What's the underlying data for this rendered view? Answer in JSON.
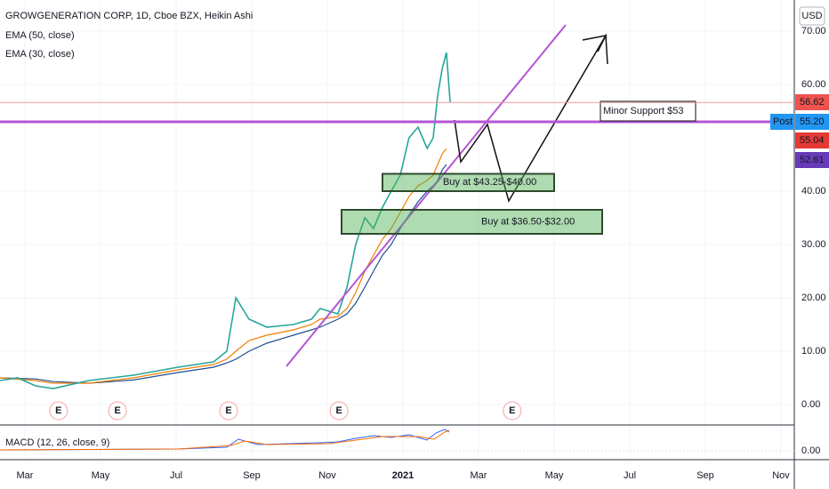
{
  "chart_data": {
    "type": "line",
    "title": "GROWGENERATION CORP, 1D, Cboe BZX, Heikin Ashi",
    "currency": "USD",
    "price": {
      "color": "#26a69a",
      "x": [
        -0.66,
        -0.19,
        0.28,
        0.75,
        1.69,
        2.87,
        4.05,
        4.99,
        5.34,
        5.58,
        5.93,
        6.4,
        7.1,
        7.58,
        7.81,
        8.28,
        8.52,
        8.75,
        8.99,
        9.22,
        9.46,
        9.69,
        9.93,
        10.16,
        10.4,
        10.64,
        10.8,
        10.92,
        11.04,
        11.15,
        11.25
      ],
      "values": [
        4.5,
        5,
        3.5,
        3,
        4.5,
        5.5,
        7,
        8,
        10,
        20,
        16,
        14.5,
        15,
        16,
        18,
        17,
        22,
        30,
        35,
        33,
        37,
        40,
        43,
        50,
        52,
        48,
        50,
        58,
        63,
        66,
        56.62
      ]
    },
    "series": [
      {
        "name": "EMA (50, close)",
        "color": "#1e4f8f",
        "x": [
          -0.66,
          0.28,
          0.75,
          1.69,
          2.87,
          4.05,
          4.99,
          5.34,
          5.58,
          5.93,
          6.4,
          7.1,
          7.58,
          7.81,
          8.28,
          8.52,
          8.75,
          8.99,
          9.22,
          9.46,
          9.69,
          9.93,
          10.16,
          10.4,
          10.64,
          10.8,
          10.92,
          11.04,
          11.15
        ],
        "values": [
          5,
          4.8,
          4.3,
          4,
          4.6,
          6,
          7,
          7.8,
          8.5,
          10,
          11.5,
          13,
          14,
          14.5,
          16,
          17,
          19,
          22,
          25,
          28,
          30,
          33,
          35.5,
          38,
          40,
          41,
          42,
          44,
          45
        ]
      },
      {
        "name": "EMA (30, close)",
        "color": "#f57c00",
        "x": [
          -0.66,
          0.28,
          0.75,
          1.69,
          2.87,
          4.05,
          4.99,
          5.34,
          5.58,
          5.93,
          6.4,
          7.1,
          7.58,
          7.81,
          8.28,
          8.52,
          8.75,
          8.99,
          9.22,
          9.46,
          9.69,
          9.93,
          10.16,
          10.4,
          10.64,
          10.8,
          10.92,
          11.04,
          11.15
        ],
        "values": [
          5,
          4.5,
          4,
          4,
          5,
          6.5,
          7.5,
          8.5,
          10,
          12,
          13,
          14,
          15,
          16,
          16.5,
          18,
          21,
          25,
          28,
          31,
          33,
          36,
          39,
          41,
          42,
          43,
          45,
          47,
          48
        ]
      }
    ],
    "xlim": [
      -0.659,
      20.353
    ],
    "xticks": [
      {
        "value": 0,
        "label": "Mar"
      },
      {
        "value": 2,
        "label": "May"
      },
      {
        "value": 4,
        "label": "Jul"
      },
      {
        "value": 6,
        "label": "Sep"
      },
      {
        "value": 8,
        "label": "Nov"
      },
      {
        "value": 10,
        "label": "2021"
      },
      {
        "value": 12,
        "label": "Mar"
      },
      {
        "value": 14,
        "label": "May"
      },
      {
        "value": 16,
        "label": "Jul"
      },
      {
        "value": 18,
        "label": "Sep"
      },
      {
        "value": 20,
        "label": "Nov"
      }
    ],
    "ylim": [
      -3.83,
      75.83
    ],
    "yticks": [
      {
        "value": 0,
        "label": "0.00"
      },
      {
        "value": 10,
        "label": "10.00"
      },
      {
        "value": 20,
        "label": "20.00"
      },
      {
        "value": 30,
        "label": "30.00"
      },
      {
        "value": 40,
        "label": "40.00"
      },
      {
        "value": 60,
        "label": "60.00"
      },
      {
        "value": 70,
        "label": "70.00"
      }
    ],
    "grid": true,
    "price_labels": [
      {
        "value": 56.62,
        "label": "56.62",
        "color": "#ef5350"
      },
      {
        "value": 55.2,
        "label": "55.20",
        "tag": "Post",
        "color": "#2196f3"
      },
      {
        "value": 55.04,
        "label": "55.04",
        "color": "#e53935"
      },
      {
        "value": 52.61,
        "label": "52.61",
        "color": "#673ab7"
      }
    ],
    "support": {
      "label": "Minor Support $53",
      "value": 53,
      "color": "#b455d6"
    },
    "buy_zones": [
      {
        "label": "Buy at $43.25-$40.00",
        "high": 43.25,
        "low": 40
      },
      {
        "label": "Buy at $36.50-$32.00",
        "high": 36.5,
        "low": 32
      }
    ],
    "earnings": [
      {
        "x": 0.89,
        "label": "E"
      },
      {
        "x": 2.45,
        "label": "E"
      },
      {
        "x": 5.39,
        "label": "E"
      },
      {
        "x": 8.31,
        "label": "E"
      },
      {
        "x": 12.89,
        "label": "E"
      }
    ],
    "macd": {
      "label": "MACD (12, 26, close, 9)",
      "yticks": [
        {
          "value": 0,
          "label": "0.00"
        }
      ]
    }
  }
}
